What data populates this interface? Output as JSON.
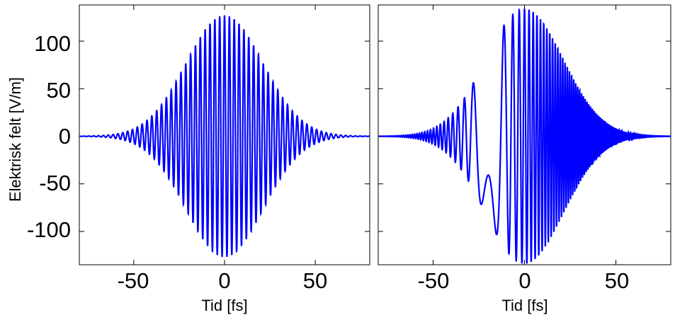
{
  "chart_data": [
    {
      "type": "line",
      "title": "",
      "xlabel": "Tid [fs]",
      "ylabel": "Elektrisk felt [V/m]",
      "xlim": [
        -80,
        80
      ],
      "ylim": [
        -135,
        138
      ],
      "grid": false,
      "xticks": [
        -50,
        0,
        50
      ],
      "xtick_labels": [
        "-50",
        "0",
        "50"
      ],
      "yticks": [
        -100,
        -50,
        0,
        50,
        100
      ],
      "ytick_labels": [
        "-100",
        "-50",
        "0",
        "50",
        "100"
      ],
      "color": "#0000ff",
      "series": [
        {
          "signal": "gaussian-enveloped cosine (unchirped)",
          "peak_amplitude_V_per_m": 127,
          "envelope_center_fs": 0,
          "envelope_1e_halfwidth_fs": 30,
          "carrier_period_fs": 2.67,
          "chirp_rate_per_fs2": 0
        }
      ]
    },
    {
      "type": "line",
      "title": "",
      "xlabel": "Tid [fs]",
      "ylabel": "",
      "xlim": [
        -80,
        80
      ],
      "ylim": [
        -135,
        138
      ],
      "grid": false,
      "xticks": [
        -50,
        0,
        50
      ],
      "xtick_labels": [
        "-50",
        "0",
        "50"
      ],
      "yticks": [
        -100,
        -50,
        0,
        50,
        100
      ],
      "ytick_labels": [],
      "color": "#0000ff",
      "series": [
        {
          "signal": "gaussian-enveloped cosine (linearly chirped)",
          "peak_amplitude_V_per_m": 134,
          "envelope_center_fs": 0,
          "envelope_1e_halfwidth_fs": 30,
          "carrier_period_fs": 2.67,
          "chirp_rate_per_fs2": 0.06
        }
      ]
    }
  ]
}
